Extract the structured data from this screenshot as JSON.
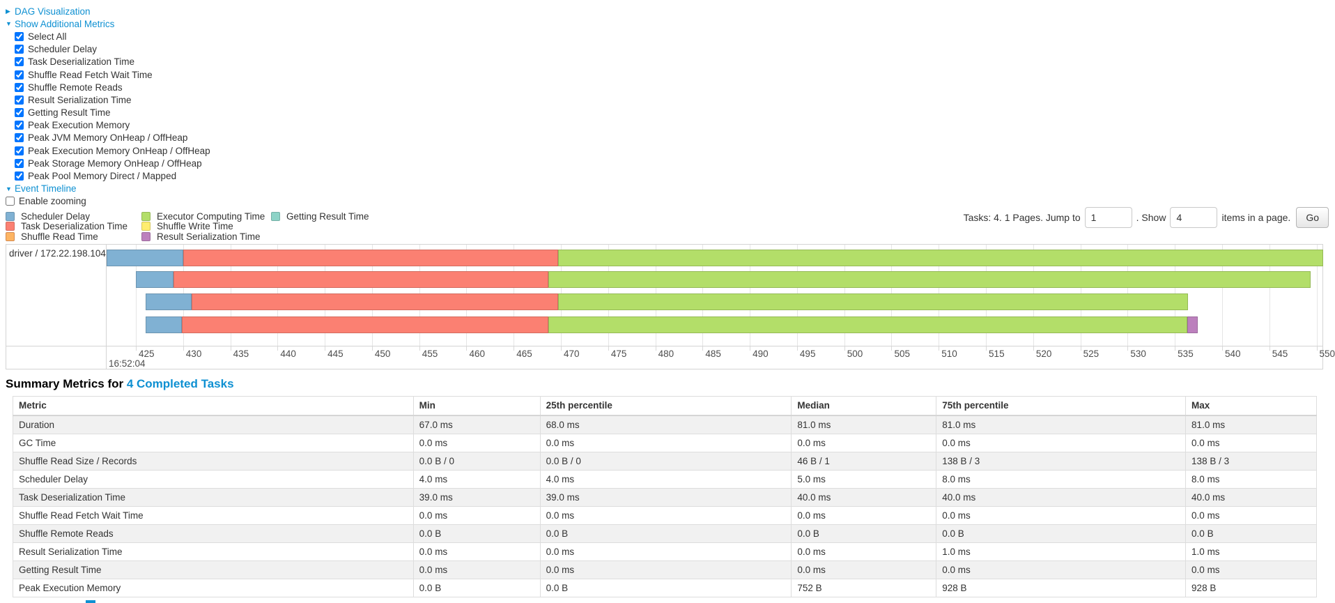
{
  "page": {
    "link_color": "#0e90d2"
  },
  "controls": {
    "dag_visualization": {
      "label": "DAG Visualization",
      "state": "collapsed"
    },
    "show_additional_metrics": {
      "label": "Show Additional Metrics",
      "state": "expanded"
    },
    "metric_checkboxes": [
      {
        "label": "Select All",
        "checked": true
      },
      {
        "label": "Scheduler Delay",
        "checked": true
      },
      {
        "label": "Task Deserialization Time",
        "checked": true
      },
      {
        "label": "Shuffle Read Fetch Wait Time",
        "checked": true
      },
      {
        "label": "Shuffle Remote Reads",
        "checked": true
      },
      {
        "label": "Result Serialization Time",
        "checked": true
      },
      {
        "label": "Getting Result Time",
        "checked": true
      },
      {
        "label": "Peak Execution Memory",
        "checked": true
      },
      {
        "label": "Peak JVM Memory OnHeap / OffHeap",
        "checked": true
      },
      {
        "label": "Peak Execution Memory OnHeap / OffHeap",
        "checked": true
      },
      {
        "label": "Peak Storage Memory OnHeap / OffHeap",
        "checked": true
      },
      {
        "label": "Peak Pool Memory Direct / Mapped",
        "checked": true
      }
    ],
    "event_timeline": {
      "label": "Event Timeline",
      "state": "expanded"
    },
    "enable_zooming": {
      "label": "Enable zooming",
      "checked": false
    }
  },
  "legend": {
    "columns": [
      {
        "items": [
          {
            "label": "Scheduler Delay",
            "color_key": "scheduler_delay"
          },
          {
            "label": "Task Deserialization Time",
            "color_key": "task_deserialization_time"
          },
          {
            "label": "Shuffle Read Time",
            "color_key": "shuffle_read_time"
          }
        ]
      },
      {
        "items": [
          {
            "label": "Executor Computing Time",
            "color_key": "executor_computing_time"
          },
          {
            "label": "Shuffle Write Time",
            "color_key": "shuffle_write_time"
          },
          {
            "label": "Result Serialization Time",
            "color_key": "result_serialization_time"
          }
        ]
      },
      {
        "items": [
          {
            "label": "Getting Result Time",
            "color_key": "getting_result_time"
          }
        ]
      }
    ]
  },
  "pagination": {
    "summary_text": "Tasks: 4. 1 Pages. Jump to",
    "jump_value": "1",
    "between_text": ". Show",
    "show_value": "4",
    "suffix_text": "items in a page.",
    "go_label": "Go"
  },
  "chart_data": {
    "type": "timeline",
    "group_label": "driver / 172.22.198.104",
    "x_axis": {
      "unit": "ms",
      "major_label": "16:52:04",
      "tick_start": 425,
      "tick_end": 550,
      "tick_step": 5,
      "domain_start_ms": 421.9,
      "domain_end_ms": 550.7
    },
    "colors": {
      "scheduler_delay": {
        "fill": "#80B1D3",
        "stroke": "#6B94B0"
      },
      "task_deserialization_time": {
        "fill": "#FB8072",
        "stroke": "#D26B5F"
      },
      "shuffle_read_time": {
        "fill": "#FDB462",
        "stroke": "#D38A51"
      },
      "executor_computing_time": {
        "fill": "#B3DE69",
        "stroke": "#95B957"
      },
      "shuffle_write_time": {
        "fill": "#FFED6F",
        "stroke": "#D5C65C"
      },
      "result_serialization_time": {
        "fill": "#BC80BD",
        "stroke": "#9D6B9E"
      },
      "getting_result_time": {
        "fill": "#8DD3C7",
        "stroke": "#75B0A6"
      }
    },
    "tasks": [
      {
        "start_ms": 421.9,
        "segments": [
          {
            "key": "scheduler_delay",
            "ms": 8.1
          },
          {
            "key": "task_deserialization_time",
            "ms": 39.7
          },
          {
            "key": "executor_computing_time",
            "ms": 81.0
          }
        ]
      },
      {
        "start_ms": 425.0,
        "segments": [
          {
            "key": "scheduler_delay",
            "ms": 4.0
          },
          {
            "key": "task_deserialization_time",
            "ms": 39.7
          },
          {
            "key": "executor_computing_time",
            "ms": 80.7
          }
        ]
      },
      {
        "start_ms": 426.0,
        "segments": [
          {
            "key": "scheduler_delay",
            "ms": 4.9
          },
          {
            "key": "task_deserialization_time",
            "ms": 38.8
          },
          {
            "key": "executor_computing_time",
            "ms": 66.7
          }
        ]
      },
      {
        "start_ms": 426.0,
        "segments": [
          {
            "key": "scheduler_delay",
            "ms": 3.9
          },
          {
            "key": "task_deserialization_time",
            "ms": 38.8
          },
          {
            "key": "executor_computing_time",
            "ms": 67.6
          },
          {
            "key": "result_serialization_time",
            "ms": 1.1
          }
        ]
      }
    ]
  },
  "summary": {
    "title_prefix": "Summary Metrics for",
    "title_link": "4 Completed Tasks",
    "table": {
      "columns": [
        "Metric",
        "Min",
        "25th percentile",
        "Median",
        "75th percentile",
        "Max"
      ],
      "rows": [
        [
          "Duration",
          "67.0 ms",
          "68.0 ms",
          "81.0 ms",
          "81.0 ms",
          "81.0 ms"
        ],
        [
          "GC Time",
          "0.0 ms",
          "0.0 ms",
          "0.0 ms",
          "0.0 ms",
          "0.0 ms"
        ],
        [
          "Shuffle Read Size / Records",
          "0.0 B / 0",
          "0.0 B / 0",
          "46 B / 1",
          "138 B / 3",
          "138 B / 3"
        ],
        [
          "Scheduler Delay",
          "4.0 ms",
          "4.0 ms",
          "5.0 ms",
          "8.0 ms",
          "8.0 ms"
        ],
        [
          "Task Deserialization Time",
          "39.0 ms",
          "39.0 ms",
          "40.0 ms",
          "40.0 ms",
          "40.0 ms"
        ],
        [
          "Shuffle Read Fetch Wait Time",
          "0.0 ms",
          "0.0 ms",
          "0.0 ms",
          "0.0 ms",
          "0.0 ms"
        ],
        [
          "Shuffle Remote Reads",
          "0.0 B",
          "0.0 B",
          "0.0 B",
          "0.0 B",
          "0.0 B"
        ],
        [
          "Result Serialization Time",
          "0.0 ms",
          "0.0 ms",
          "0.0 ms",
          "1.0 ms",
          "1.0 ms"
        ],
        [
          "Getting Result Time",
          "0.0 ms",
          "0.0 ms",
          "0.0 ms",
          "0.0 ms",
          "0.0 ms"
        ],
        [
          "Peak Execution Memory",
          "0.0 B",
          "0.0 B",
          "752 B",
          "928 B",
          "928 B"
        ]
      ]
    }
  }
}
